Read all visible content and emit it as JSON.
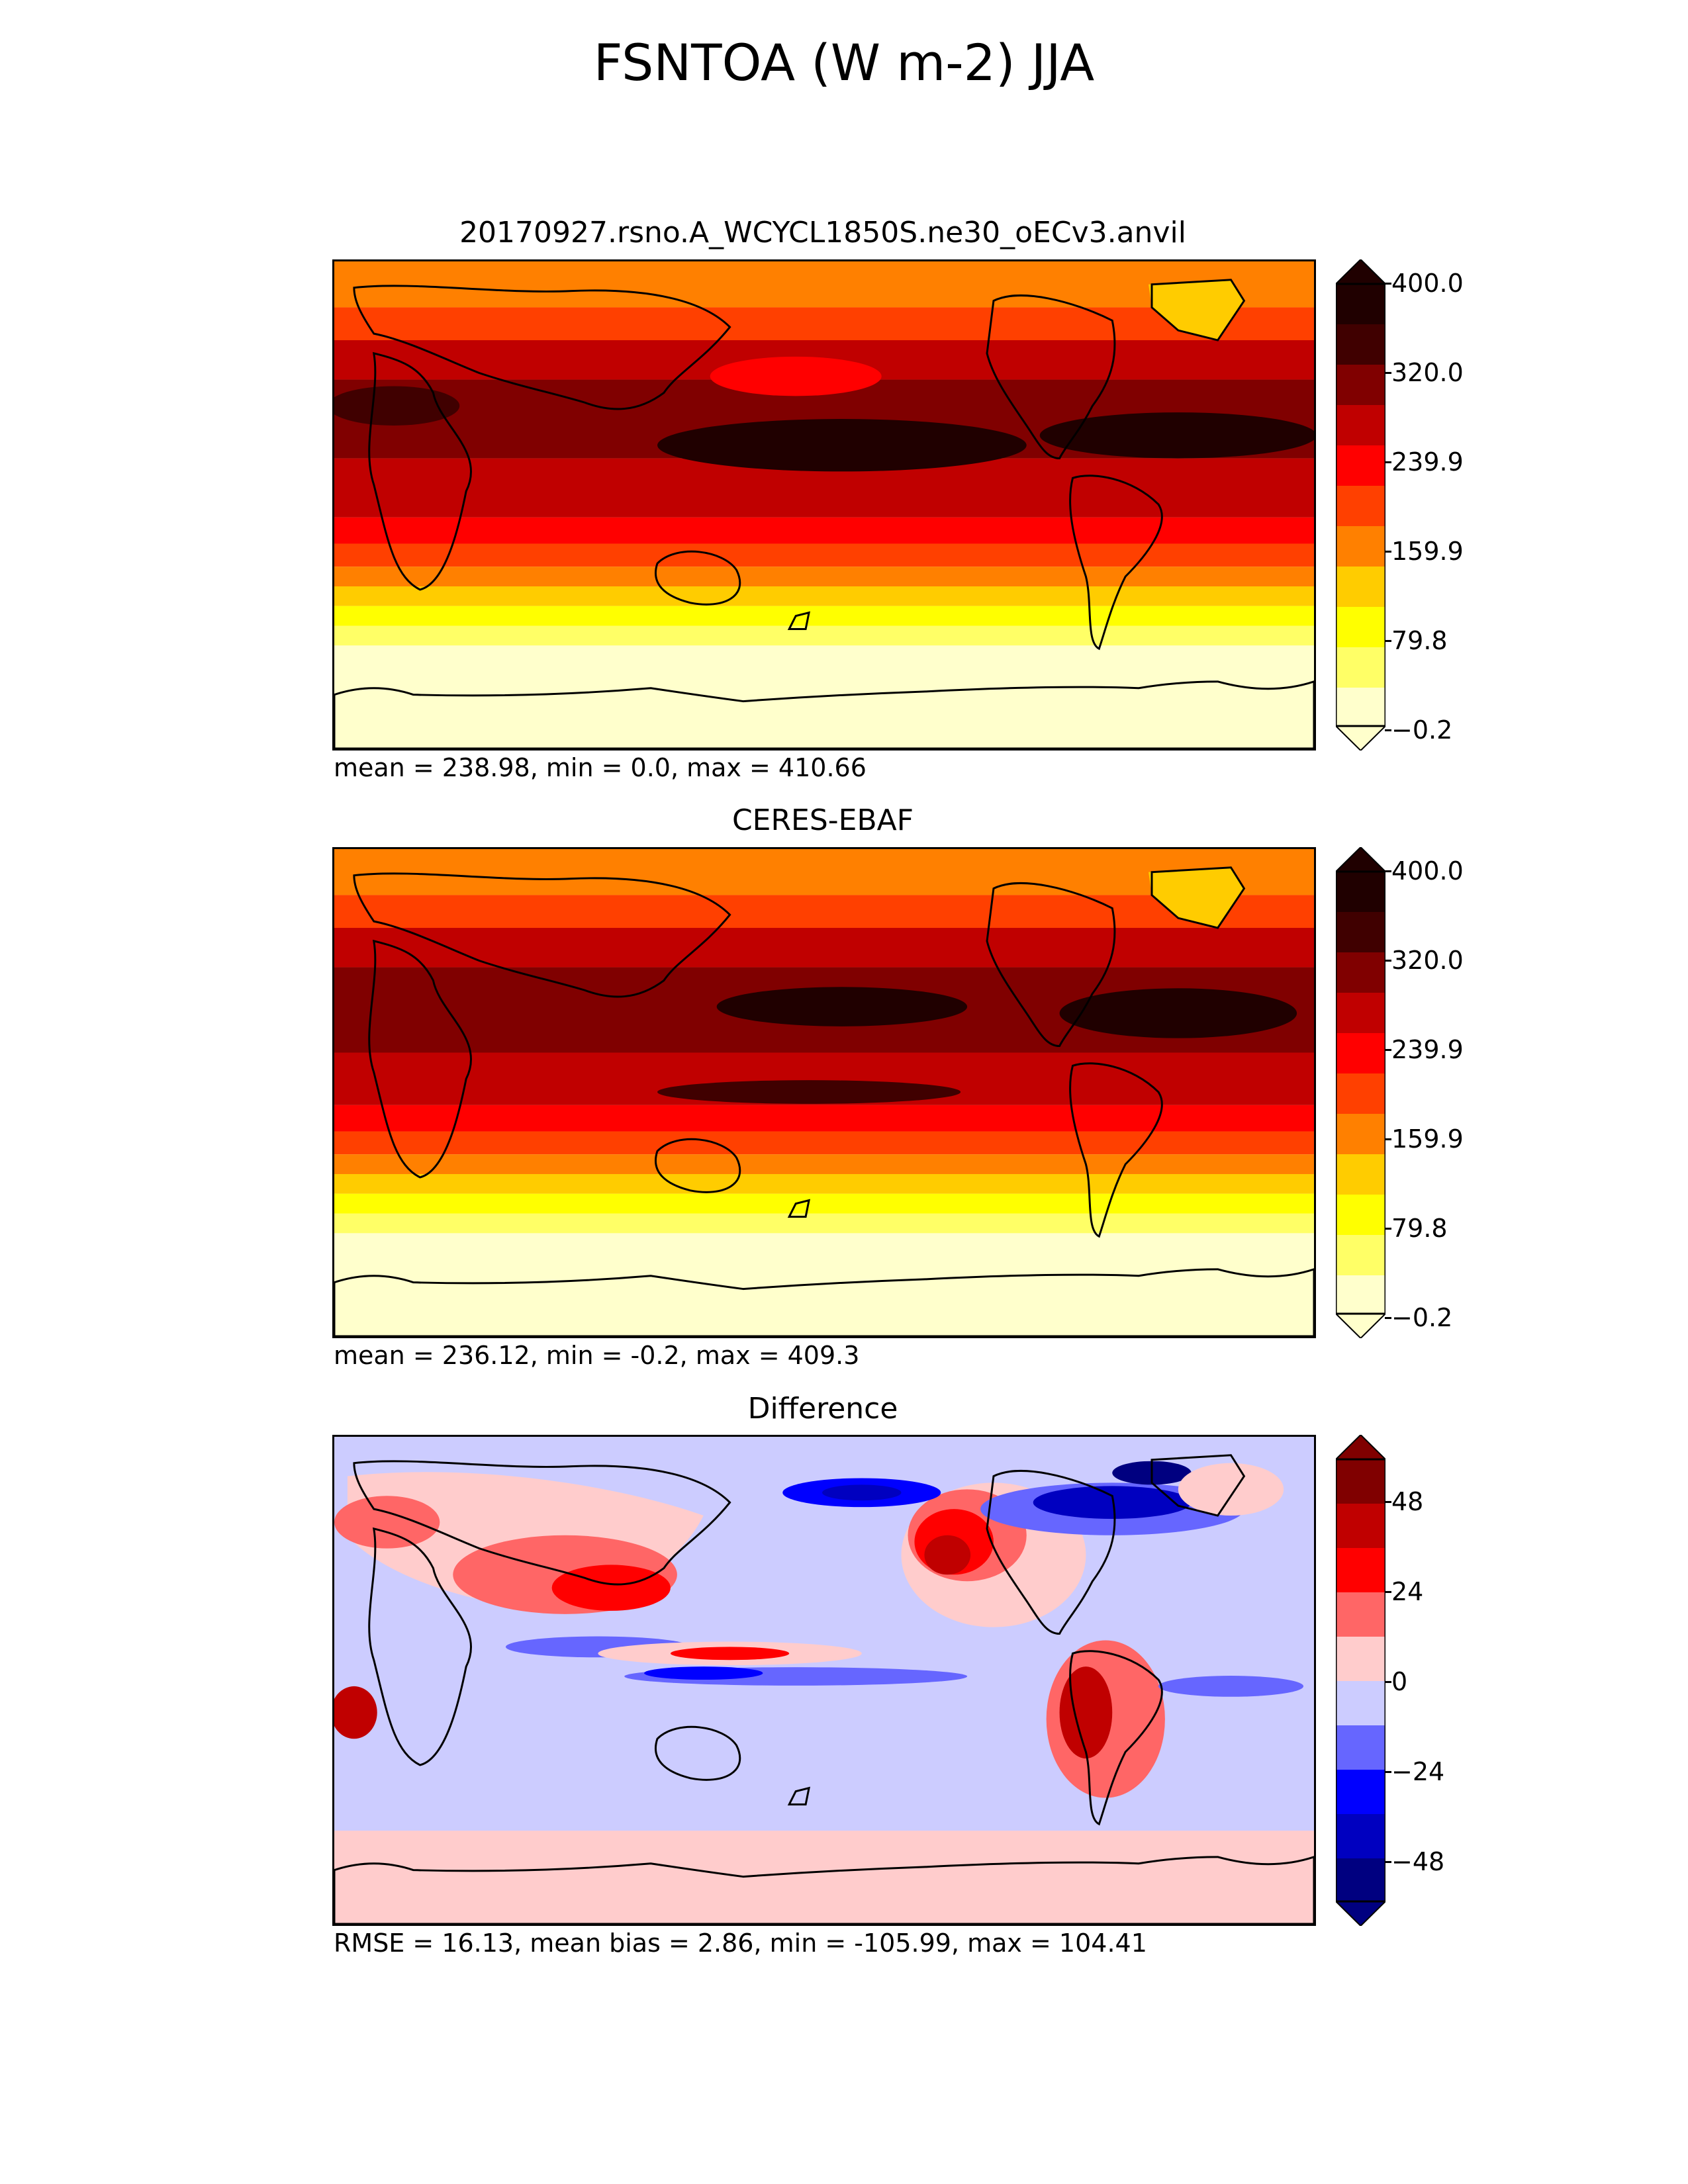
{
  "figure": {
    "title": "FSNTOA (W m-2) JJA"
  },
  "panels": [
    {
      "title": "20170927.rsno.A_WCYCL1850S.ne30_oECv3.anvil",
      "stats": "mean = 238.98, min = 0.0, max = 410.66",
      "colorbar": {
        "ticks": [
          "400.0",
          "320.0",
          "239.9",
          "159.9",
          "79.8",
          "−0.2"
        ]
      }
    },
    {
      "title": "CERES-EBAF",
      "stats": "mean = 236.12, min = -0.2, max = 409.3",
      "colorbar": {
        "ticks": [
          "400.0",
          "320.0",
          "239.9",
          "159.9",
          "79.8",
          "−0.2"
        ]
      }
    },
    {
      "title": "Difference",
      "stats": "RMSE = 16.13, mean bias = 2.86, min = -105.99, max = 104.41",
      "colorbar": {
        "ticks": [
          "48",
          "24",
          "0",
          "−24",
          "−48"
        ]
      }
    }
  ],
  "chart_data": [
    {
      "type": "heatmap",
      "map": "global lat-lon, centered near 180°, with coastlines",
      "colormap": "white-yellow-orange-red-black (hot_r)",
      "levels_range": [
        -0.2,
        400.0
      ],
      "colors": [
        "#ffffcc",
        "#ffff66",
        "#ffff00",
        "#ffcc00",
        "#ff8000",
        "#ff4000",
        "#ff0000",
        "#c00000",
        "#800000",
        "#400000",
        "#200000"
      ],
      "extend": "both"
    },
    {
      "type": "heatmap",
      "map": "global lat-lon, centered near 180°, with coastlines",
      "colormap": "white-yellow-orange-red-black (hot_r)",
      "levels_range": [
        -0.2,
        400.0
      ],
      "colors": [
        "#ffffcc",
        "#ffff66",
        "#ffff00",
        "#ffcc00",
        "#ff8000",
        "#ff4000",
        "#ff0000",
        "#c00000",
        "#800000",
        "#400000",
        "#200000"
      ],
      "extend": "both"
    },
    {
      "type": "heatmap",
      "map": "global lat-lon, centered near 180°, with coastlines",
      "colormap": "diverging blue-white-red",
      "levels_range": [
        -60,
        60
      ],
      "colors": [
        "#000080",
        "#0000c0",
        "#0000ff",
        "#6666ff",
        "#ccccff",
        "#ffcccc",
        "#ff6666",
        "#ff0000",
        "#c00000",
        "#800000"
      ],
      "extend": "both"
    }
  ]
}
